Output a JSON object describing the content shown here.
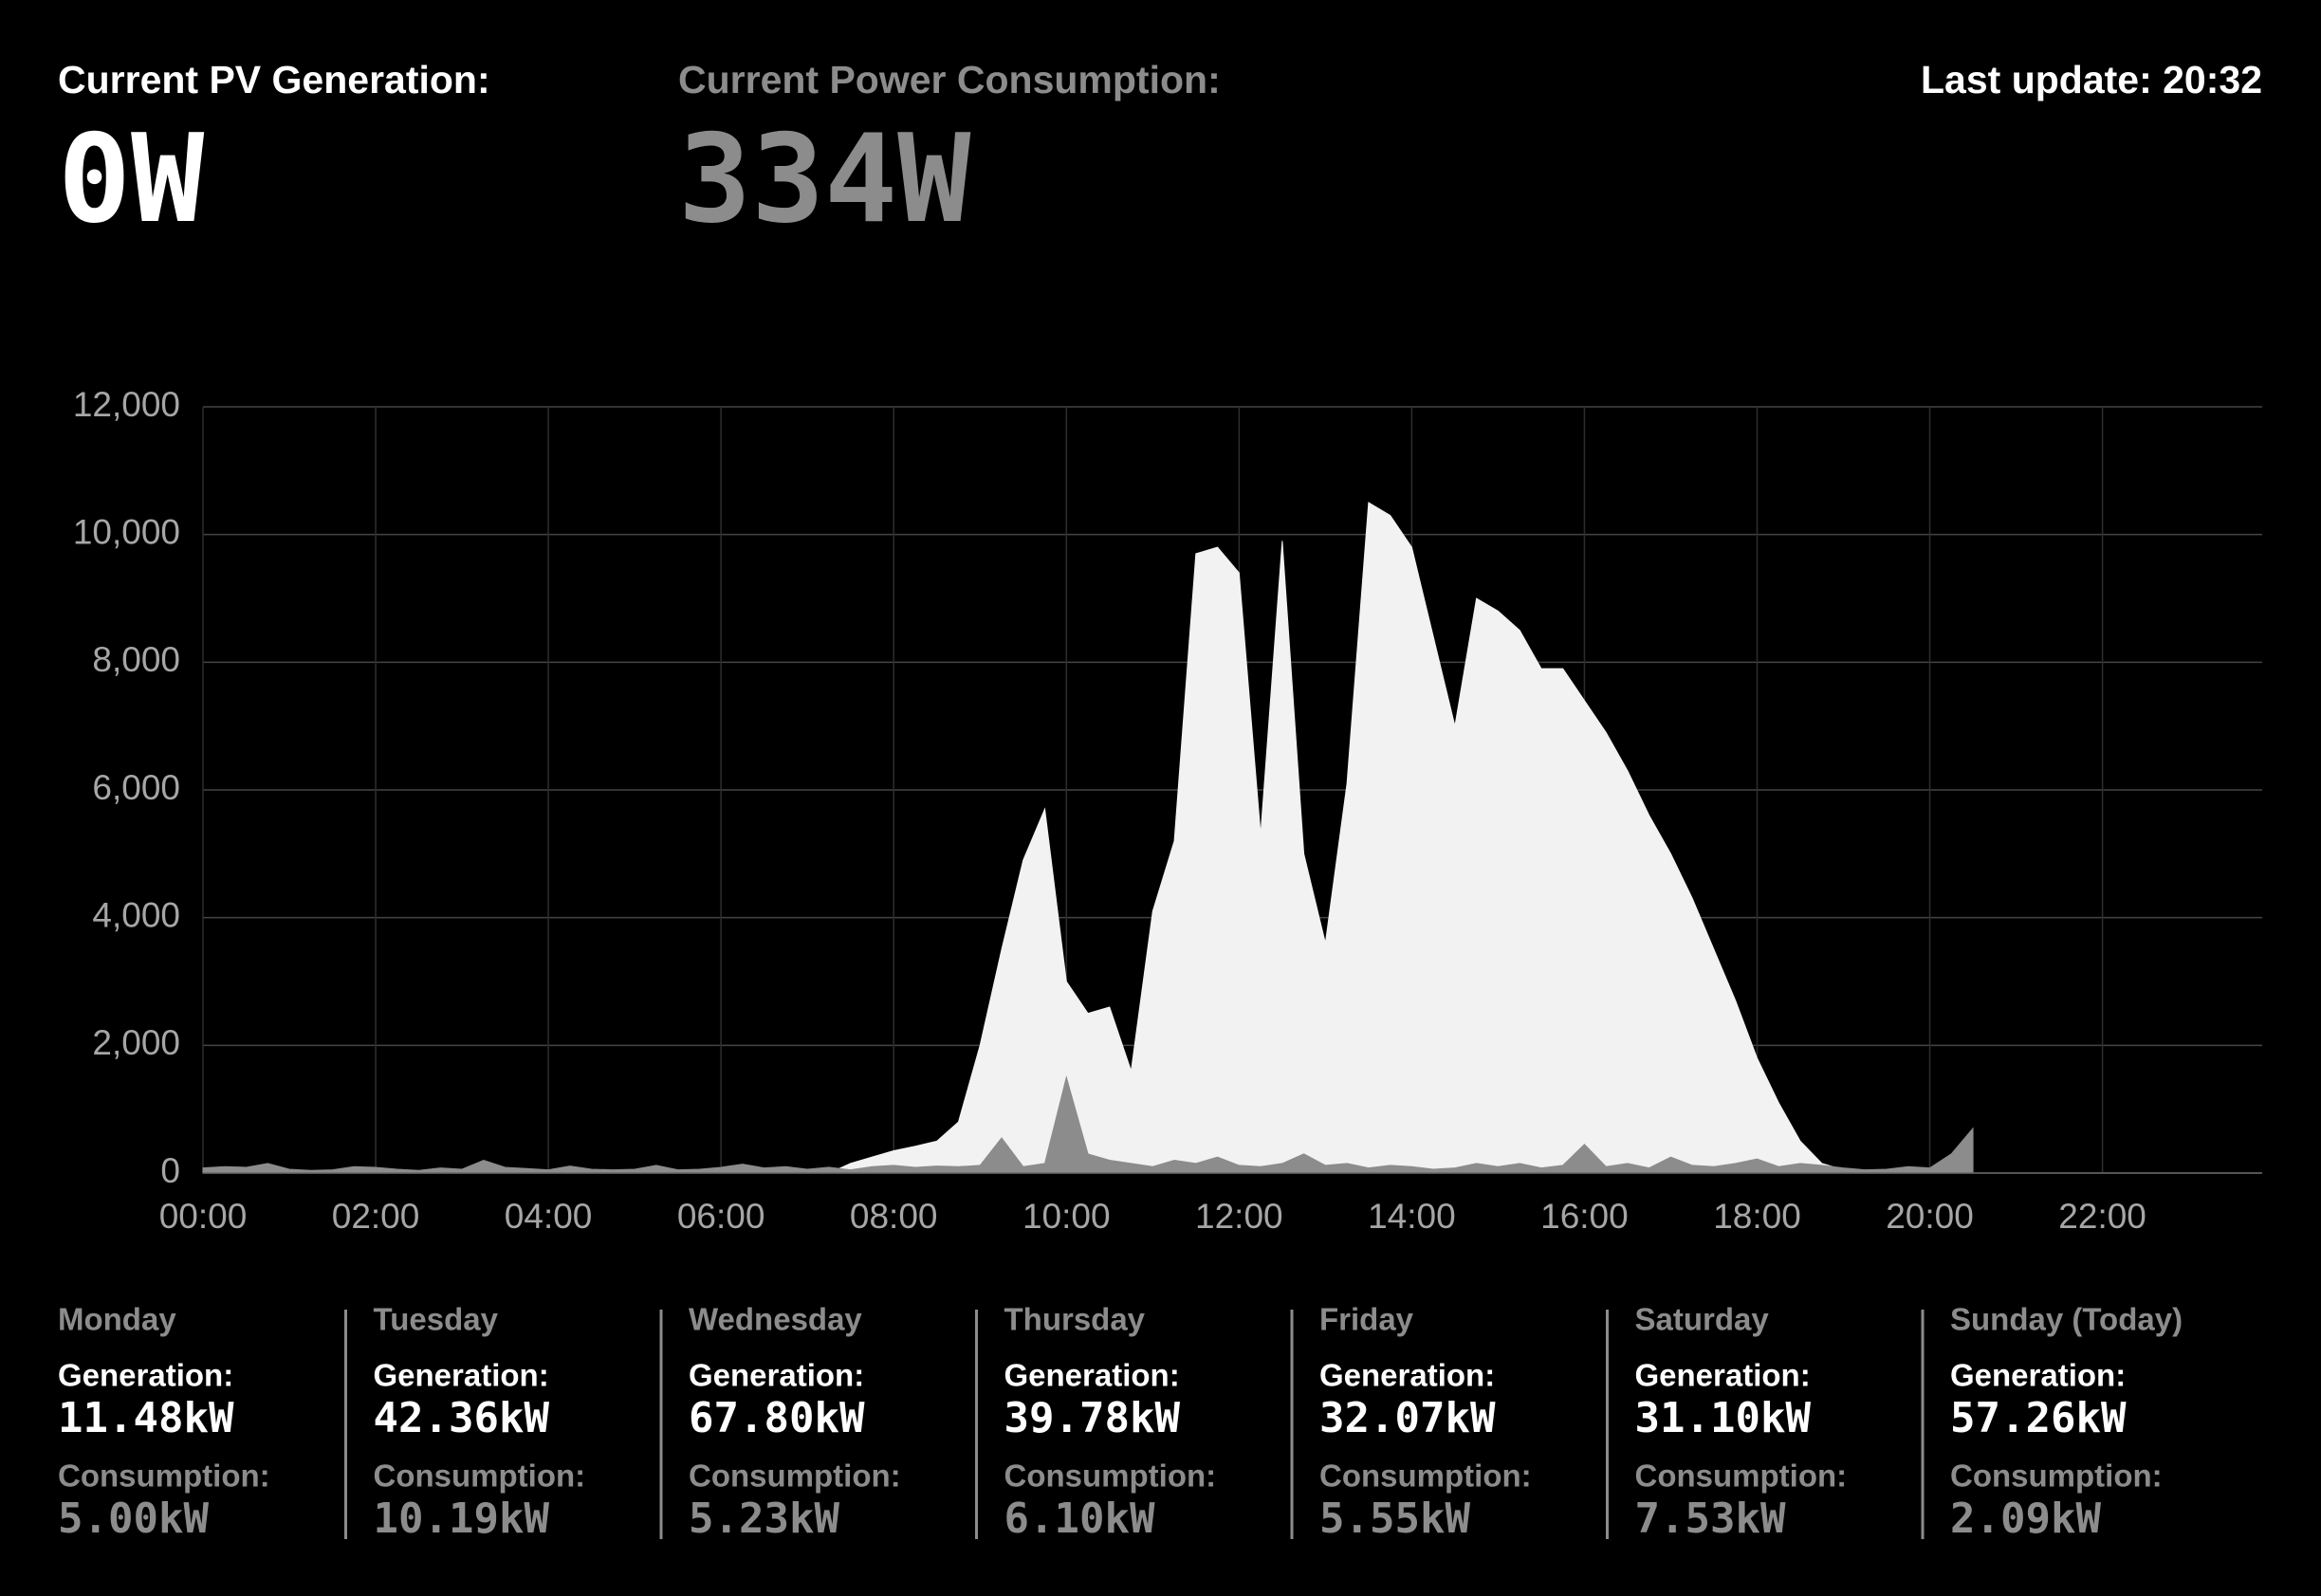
{
  "header": {
    "pv_label": "Current PV Generation:",
    "pv_value": "0W",
    "consumption_label": "Current Power Consumption:",
    "consumption_value": "334W",
    "last_update": "Last update: 20:32"
  },
  "chart_data": {
    "type": "area",
    "x": [
      0,
      0.25,
      0.5,
      0.75,
      1,
      1.25,
      1.5,
      1.75,
      2,
      2.25,
      2.5,
      2.75,
      3,
      3.25,
      3.5,
      3.75,
      4,
      4.25,
      4.5,
      4.75,
      5,
      5.25,
      5.5,
      5.75,
      6,
      6.25,
      6.5,
      6.75,
      7,
      7.25,
      7.5,
      7.75,
      8,
      8.25,
      8.5,
      8.75,
      9,
      9.25,
      9.5,
      9.75,
      10,
      10.25,
      10.5,
      10.75,
      11,
      11.25,
      11.5,
      11.75,
      12,
      12.25,
      12.5,
      12.75,
      13,
      13.25,
      13.5,
      13.75,
      14,
      14.25,
      14.5,
      14.75,
      15,
      15.25,
      15.5,
      15.75,
      16,
      16.25,
      16.5,
      16.75,
      17,
      17.25,
      17.5,
      17.75,
      18,
      18.25,
      18.5,
      18.75,
      19,
      19.25,
      19.5,
      19.75,
      20,
      20.25,
      20.5
    ],
    "series": [
      {
        "name": "Generation",
        "color": "#f2f2f2",
        "values": [
          0,
          0,
          0,
          0,
          0,
          0,
          0,
          0,
          0,
          0,
          0,
          0,
          0,
          0,
          0,
          0,
          0,
          0,
          0,
          0,
          0,
          0,
          0,
          0,
          0,
          0,
          0,
          0,
          0,
          0,
          150,
          250,
          350,
          420,
          500,
          800,
          2000,
          3500,
          4900,
          5700,
          3000,
          2500,
          2600,
          1600,
          4100,
          5200,
          9700,
          9800,
          9400,
          5300,
          9900,
          5000,
          3600,
          6100,
          10500,
          10300,
          9800,
          8400,
          7000,
          9000,
          8800,
          8500,
          7900,
          7900,
          7400,
          6900,
          6300,
          5600,
          5000,
          4300,
          3500,
          2700,
          1800,
          1100,
          500,
          150,
          50,
          0,
          0,
          0,
          0,
          0,
          0
        ]
      },
      {
        "name": "Consumption",
        "color": "#8c8c8c",
        "values": [
          80,
          100,
          90,
          150,
          60,
          40,
          50,
          100,
          90,
          60,
          40,
          80,
          60,
          200,
          90,
          70,
          50,
          110,
          60,
          50,
          60,
          120,
          50,
          60,
          90,
          140,
          80,
          100,
          60,
          90,
          50,
          100,
          120,
          90,
          110,
          100,
          120,
          550,
          100,
          150,
          1500,
          300,
          200,
          150,
          100,
          200,
          150,
          250,
          120,
          100,
          150,
          300,
          120,
          150,
          80,
          120,
          100,
          60,
          80,
          150,
          100,
          150,
          80,
          120,
          450,
          100,
          150,
          80,
          250,
          120,
          100,
          150,
          220,
          100,
          150,
          120,
          80,
          50,
          60,
          100,
          80,
          300,
          700
        ]
      }
    ],
    "xlim": [
      0,
      23.85
    ],
    "xticks": [
      {
        "value": 0,
        "label": "00:00"
      },
      {
        "value": 2,
        "label": "02:00"
      },
      {
        "value": 4,
        "label": "04:00"
      },
      {
        "value": 6,
        "label": "06:00"
      },
      {
        "value": 8,
        "label": "08:00"
      },
      {
        "value": 10,
        "label": "10:00"
      },
      {
        "value": 12,
        "label": "12:00"
      },
      {
        "value": 14,
        "label": "14:00"
      },
      {
        "value": 16,
        "label": "16:00"
      },
      {
        "value": 18,
        "label": "18:00"
      },
      {
        "value": 20,
        "label": "20:00"
      },
      {
        "value": 22,
        "label": "22:00"
      }
    ],
    "ylim": [
      0,
      12000
    ],
    "yticks": [
      0,
      {
        "value": 2000,
        "label": "2,000"
      },
      {
        "value": 4000,
        "label": "4,000"
      },
      {
        "value": 6000,
        "label": "6,000"
      },
      {
        "value": 8000,
        "label": "8,000"
      },
      {
        "value": 10000,
        "label": "10,000"
      },
      {
        "value": 12000,
        "label": "12,000"
      }
    ],
    "grid": true
  },
  "days": [
    {
      "name": "Monday",
      "generation_label": "Generation:",
      "generation": "11.48kW",
      "consumption_label": "Consumption:",
      "consumption": "5.00kW"
    },
    {
      "name": "Tuesday",
      "generation_label": "Generation:",
      "generation": "42.36kW",
      "consumption_label": "Consumption:",
      "consumption": "10.19kW"
    },
    {
      "name": "Wednesday",
      "generation_label": "Generation:",
      "generation": "67.80kW",
      "consumption_label": "Consumption:",
      "consumption": "5.23kW"
    },
    {
      "name": "Thursday",
      "generation_label": "Generation:",
      "generation": "39.78kW",
      "consumption_label": "Consumption:",
      "consumption": "6.10kW"
    },
    {
      "name": "Friday",
      "generation_label": "Generation:",
      "generation": "32.07kW",
      "consumption_label": "Consumption:",
      "consumption": "5.55kW"
    },
    {
      "name": "Saturday",
      "generation_label": "Generation:",
      "generation": "31.10kW",
      "consumption_label": "Consumption:",
      "consumption": "7.53kW"
    },
    {
      "name": "Sunday (Today)",
      "generation_label": "Generation:",
      "generation": "57.26kW",
      "consumption_label": "Consumption:",
      "consumption": "2.09kW"
    }
  ]
}
